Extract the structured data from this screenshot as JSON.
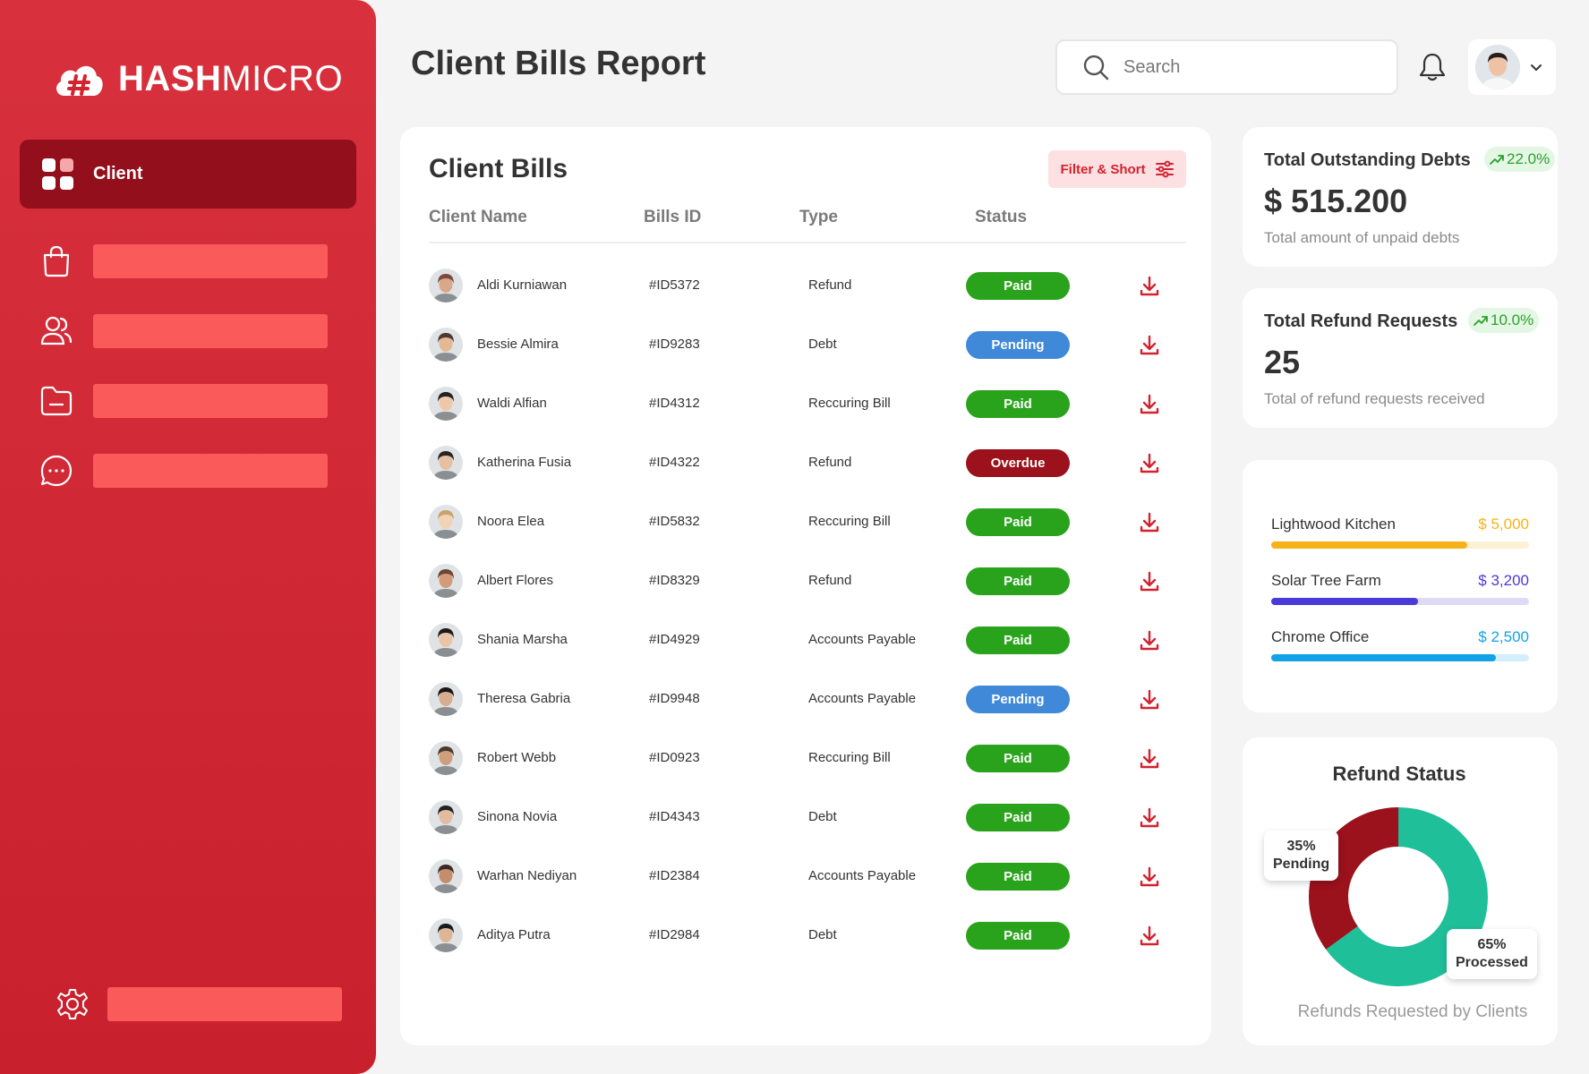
{
  "brand": {
    "bold": "HASH",
    "light": "MICRO"
  },
  "sidebar": {
    "active_label": "Client"
  },
  "header": {
    "title": "Client Bills Report",
    "search_placeholder": "Search"
  },
  "bills": {
    "title": "Client Bills",
    "filter_label": "Filter & Short",
    "columns": [
      "Client Name",
      "Bills ID",
      "Type",
      "Status"
    ],
    "rows": [
      {
        "name": "Aldi Kurniawan",
        "id": "#ID5372",
        "type": "Refund",
        "status": "Paid"
      },
      {
        "name": "Bessie Almira",
        "id": "#ID9283",
        "type": "Debt",
        "status": "Pending"
      },
      {
        "name": "Waldi Alfian",
        "id": "#ID4312",
        "type": "Reccuring Bill",
        "status": "Paid"
      },
      {
        "name": "Katherina Fusia",
        "id": "#ID4322",
        "type": "Refund",
        "status": "Overdue"
      },
      {
        "name": "Noora Elea",
        "id": "#ID5832",
        "type": "Reccuring Bill",
        "status": "Paid"
      },
      {
        "name": "Albert Flores",
        "id": "#ID8329",
        "type": "Refund",
        "status": "Paid"
      },
      {
        "name": "Shania Marsha",
        "id": "#ID4929",
        "type": "Accounts Payable",
        "status": "Paid"
      },
      {
        "name": "Theresa Gabria",
        "id": "#ID9948",
        "type": "Accounts Payable",
        "status": "Pending"
      },
      {
        "name": "Robert Webb",
        "id": "#ID0923",
        "type": "Reccuring Bill",
        "status": "Paid"
      },
      {
        "name": "Sinona Novia",
        "id": "#ID4343",
        "type": "Debt",
        "status": "Paid"
      },
      {
        "name": "Warhan Nediyan",
        "id": "#ID2384",
        "type": "Accounts Payable",
        "status": "Paid"
      },
      {
        "name": "Aditya Putra",
        "id": "#ID2984",
        "type": "Debt",
        "status": "Paid"
      }
    ]
  },
  "status_colors": {
    "Paid": "#2aa31c",
    "Pending": "#3f89d8",
    "Overdue": "#9b111c"
  },
  "outstanding": {
    "title": "Total Outstanding Debts",
    "trend": "22.0%",
    "value": "$ 515.200",
    "desc": "Total amount of unpaid debts"
  },
  "refunds": {
    "title": "Total Refund Requests",
    "trend": "10.0%",
    "value": "25",
    "desc": "Total of refund requests received"
  },
  "progress": [
    {
      "name": "Lightwood Kitchen",
      "amount": "$ 5,000",
      "fraction": 0.76,
      "color": "#f6b21a",
      "track": "#fdf1d3"
    },
    {
      "name": "Solar Tree Farm",
      "amount": "$ 3,200",
      "fraction": 0.57,
      "color": "#4a3ad8",
      "track": "#dddaf6"
    },
    {
      "name": "Chrome Office",
      "amount": "$ 2,500",
      "fraction": 0.87,
      "color": "#12a3e6",
      "track": "#d4effb"
    }
  ],
  "refund_status": {
    "title": "Refund Status",
    "caption": "Refunds Requested by Clients",
    "pending": {
      "percent": "35%",
      "label": "Pending",
      "value": 35,
      "color": "#9b111c"
    },
    "processed": {
      "percent": "65%",
      "label": "Processed",
      "value": 65,
      "color": "#1fbf99"
    }
  }
}
